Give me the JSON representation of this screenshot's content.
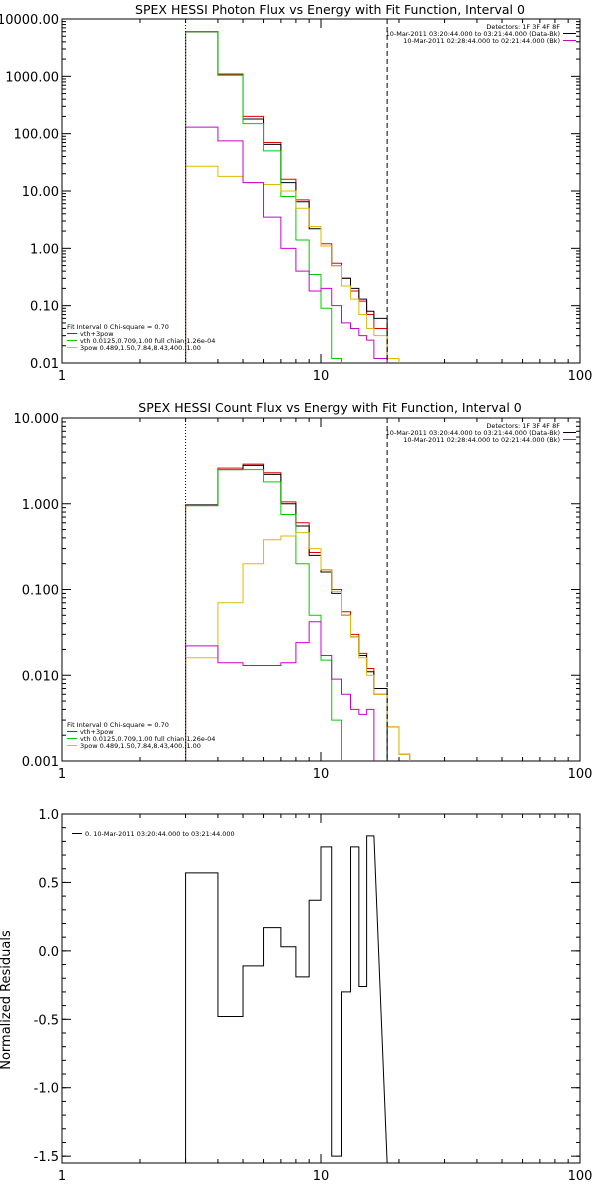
{
  "chart_data": [
    {
      "type": "line",
      "title": "SPEX HESSI Photon Flux vs Energy with Fit Function, Interval 0",
      "xscale": "log",
      "yscale": "log",
      "xlim": [
        1,
        100
      ],
      "ylim": [
        0.01,
        10000
      ],
      "x_ticks": [
        "1",
        "10",
        "100"
      ],
      "y_ticks": [
        {
          "v": 0.01,
          "label": "0.01"
        },
        {
          "v": 0.1,
          "label": "0.10"
        },
        {
          "v": 1,
          "label": "1.00"
        },
        {
          "v": 10,
          "label": "10.00"
        },
        {
          "v": 100,
          "label": "100.00"
        },
        {
          "v": 1000,
          "label": "1000.00"
        },
        {
          "v": 10000,
          "label": "10000.00"
        }
      ],
      "vlines": [
        {
          "x": 3.0,
          "style": "dotted"
        },
        {
          "x": 18.0,
          "style": "dashed"
        }
      ],
      "header_lines": [
        {
          "text": "Detectors: 1F 3F 4F 8F",
          "color": ""
        },
        {
          "text": "10-Mar-2011 03:20:44.000 to 03:21:44.000 (Data-Bk)",
          "color": "#000000"
        },
        {
          "text": "10-Mar-2011 02:28:44.000 to 02:21:44.000 (Bk)",
          "color": "#cc00cc"
        }
      ],
      "fit_legend": {
        "title": "Fit Interval 0   Chi-square = 0.70",
        "items": [
          {
            "text": "vth+3pow",
            "color": "#dd0000"
          },
          {
            "text": "vth 0.0125,0.709,1.00  full chian 1.26e-04",
            "color": "#00cc00"
          },
          {
            "text": "3pow 0.489,1.50,7.84,8.43,400.,1.00",
            "color": "#ddbb00"
          }
        ]
      },
      "edges": [
        3.0,
        4.0,
        5.0,
        6.0,
        7.0,
        8.0,
        9.0,
        10.0,
        11.0,
        12.0,
        13.0,
        14.0,
        15.0,
        16.0,
        18.0,
        20.0,
        22.0
      ],
      "series": [
        {
          "color": "#dd0000",
          "values": [
            6000,
            1100,
            200,
            70,
            16,
            7.0,
            2.4,
            1.2,
            0.55,
            0.3,
            0.18,
            0.12,
            0.07,
            0.04,
            0.012,
            null
          ]
        },
        {
          "color": "#000000",
          "values": [
            6000,
            1050,
            180,
            65,
            14,
            6.5,
            2.2,
            1.1,
            0.5,
            0.3,
            0.2,
            0.13,
            0.08,
            0.06,
            null,
            null
          ]
        },
        {
          "color": "#00cc00",
          "values": [
            6000,
            1050,
            150,
            50,
            8.0,
            1.4,
            0.35,
            0.09,
            0.012,
            null,
            null,
            null,
            null,
            null,
            null,
            null
          ]
        },
        {
          "color": "#ddbb00",
          "values": [
            27,
            18,
            14,
            13,
            10,
            5.0,
            2.4,
            1.1,
            0.5,
            0.22,
            0.13,
            0.07,
            0.04,
            0.03,
            0.012,
            null
          ]
        },
        {
          "color": "#cc00cc",
          "values": [
            130,
            75,
            14,
            3.5,
            1.0,
            0.4,
            0.18,
            0.2,
            0.1,
            0.05,
            0.04,
            0.03,
            0.025,
            0.012,
            null,
            null
          ]
        }
      ]
    },
    {
      "type": "line",
      "title": "SPEX HESSI Count Flux vs Energy with Fit Function, Interval 0",
      "xscale": "log",
      "yscale": "log",
      "xlim": [
        1,
        100
      ],
      "ylim": [
        0.001,
        10
      ],
      "x_ticks": [
        "1",
        "10",
        "100"
      ],
      "y_ticks": [
        {
          "v": 0.001,
          "label": "0.001"
        },
        {
          "v": 0.01,
          "label": "0.010"
        },
        {
          "v": 0.1,
          "label": "0.100"
        },
        {
          "v": 1,
          "label": "1.000"
        },
        {
          "v": 10,
          "label": "10.000"
        }
      ],
      "vlines": [
        {
          "x": 3.0,
          "style": "dotted"
        },
        {
          "x": 18.0,
          "style": "dashed"
        }
      ],
      "header_lines": [
        {
          "text": "Detectors: 1F 3F 4F 8F",
          "color": ""
        },
        {
          "text": "10-Mar-2011 03:20:44.000 to 03:21:44.000 (Data-Bk)",
          "color": "#000000"
        },
        {
          "text": "10-Mar-2011 02:28:44.000 to 02:21:44.000 (Bk)",
          "color": "#cc00cc"
        }
      ],
      "fit_legend": {
        "title": "Fit Interval 0   Chi-square = 0.70",
        "items": [
          {
            "text": "vth+3pow",
            "color": "#dd0000"
          },
          {
            "text": "vth 0.0125,0.709,1.00  full chian 1.26e-04",
            "color": "#00cc00"
          },
          {
            "text": "3pow 0.489,1.50,7.84,8.43,400.,1.00",
            "color": "#ddbb00"
          }
        ]
      },
      "edges": [
        3.0,
        4.0,
        5.0,
        6.0,
        7.0,
        8.0,
        9.0,
        10.0,
        11.0,
        12.0,
        13.0,
        14.0,
        15.0,
        16.0,
        18.0,
        20.0,
        22.0
      ],
      "series": [
        {
          "color": "#dd0000",
          "values": [
            0.95,
            2.6,
            2.9,
            2.3,
            1.05,
            0.6,
            0.27,
            0.17,
            0.1,
            0.055,
            0.03,
            0.018,
            0.012,
            0.006,
            0.0025,
            0.0012
          ]
        },
        {
          "color": "#000000",
          "values": [
            0.97,
            2.5,
            2.8,
            2.2,
            1.0,
            0.55,
            0.25,
            0.16,
            0.09,
            0.05,
            0.028,
            0.017,
            0.011,
            0.007,
            null,
            null
          ]
        },
        {
          "color": "#00cc00",
          "values": [
            0.95,
            2.5,
            2.5,
            1.8,
            0.75,
            0.2,
            0.05,
            0.015,
            0.003,
            null,
            null,
            null,
            null,
            null,
            null,
            null
          ]
        },
        {
          "color": "#ddbb00",
          "values": [
            0.016,
            0.07,
            0.2,
            0.38,
            0.42,
            0.46,
            0.3,
            0.17,
            0.095,
            0.05,
            0.028,
            0.016,
            0.01,
            0.006,
            0.0025,
            0.0012
          ]
        },
        {
          "color": "#cc00cc",
          "values": [
            0.022,
            0.014,
            0.013,
            0.013,
            0.014,
            0.024,
            0.042,
            0.017,
            0.009,
            0.006,
            0.004,
            0.0035,
            0.004,
            null,
            null,
            null
          ]
        }
      ]
    },
    {
      "type": "line",
      "title": "",
      "xscale": "log",
      "yscale": "linear",
      "xlim": [
        1,
        100
      ],
      "ylim": [
        -1.55,
        1.0
      ],
      "ylabel": "Normalized Residuals",
      "x_ticks": [
        "1",
        "10",
        "100"
      ],
      "y_ticks": [
        {
          "v": 1.0,
          "label": "1.0"
        },
        {
          "v": 0.5,
          "label": "0.5"
        },
        {
          "v": 0.0,
          "label": "0.0"
        },
        {
          "v": -0.5,
          "label": "-0.5"
        },
        {
          "v": -1.0,
          "label": "-1.0"
        },
        {
          "v": -1.5,
          "label": "-1.5"
        }
      ],
      "legend": "0. 10-Mar-2011 03:20:44.000 to 03:21:44.000",
      "edges": [
        3.0,
        4.0,
        5.0,
        6.0,
        7.0,
        8.0,
        9.0,
        10.0,
        11.0,
        12.0,
        13.0,
        14.0,
        15.0,
        16.0,
        18.0
      ],
      "values": [
        0.57,
        -0.48,
        -0.11,
        0.17,
        0.03,
        -0.19,
        0.37,
        0.76,
        -1.5,
        -0.3,
        0.76,
        -0.26,
        0.84,
        null
      ]
    }
  ]
}
